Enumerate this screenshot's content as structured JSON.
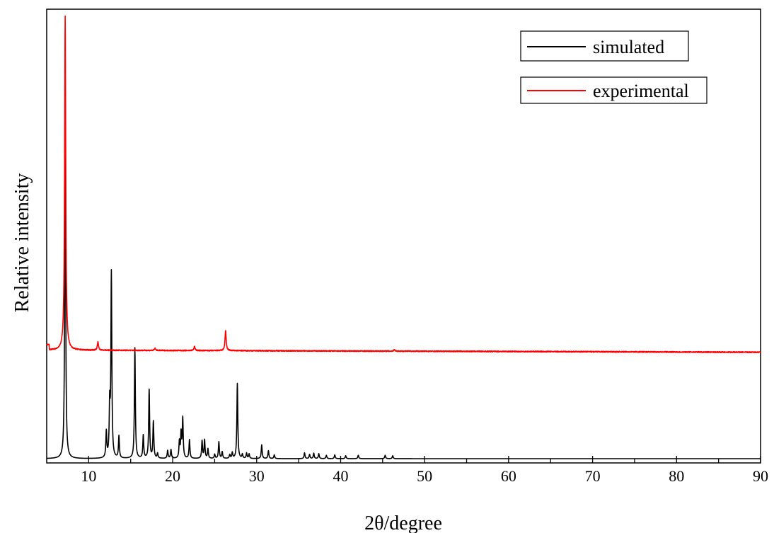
{
  "chart_data": {
    "type": "line",
    "xlabel": "2θ/degree",
    "ylabel": "Relative intensity",
    "xlim": [
      5,
      90
    ],
    "ylim": [
      0,
      100
    ],
    "x_ticks": [
      "10",
      "20",
      "30",
      "40",
      "50",
      "60",
      "70",
      "80",
      "90"
    ],
    "grid": false,
    "legend_placement": "top-right",
    "series": [
      {
        "name": "simulated",
        "color": "#000000",
        "baseline": 0,
        "peaks": [
          [
            7.2,
            83
          ],
          [
            12.1,
            6.2
          ],
          [
            12.5,
            12
          ],
          [
            12.7,
            44
          ],
          [
            13.6,
            5.3
          ],
          [
            15.5,
            26.5
          ],
          [
            16.5,
            5.5
          ],
          [
            17.2,
            16.4
          ],
          [
            17.7,
            8.8
          ],
          [
            18.2,
            1.2
          ],
          [
            19.4,
            1.9
          ],
          [
            19.8,
            2.1
          ],
          [
            20.8,
            3.9
          ],
          [
            21.0,
            5.8
          ],
          [
            21.2,
            9.5
          ],
          [
            22.0,
            4.5
          ],
          [
            23.5,
            4.2
          ],
          [
            23.8,
            4.4
          ],
          [
            24.2,
            2.3
          ],
          [
            25.0,
            1.0
          ],
          [
            25.5,
            4.0
          ],
          [
            25.9,
            1.6
          ],
          [
            26.8,
            0.9
          ],
          [
            27.1,
            1.4
          ],
          [
            27.7,
            18
          ],
          [
            28.3,
            1.0
          ],
          [
            28.8,
            1.3
          ],
          [
            29.1,
            1.1
          ],
          [
            30.6,
            3.3
          ],
          [
            31.4,
            1.9
          ],
          [
            32.1,
            0.9
          ],
          [
            35.7,
            1.4
          ],
          [
            36.3,
            1.0
          ],
          [
            36.8,
            1.3
          ],
          [
            37.4,
            1.2
          ],
          [
            38.3,
            0.8
          ],
          [
            39.3,
            0.9
          ],
          [
            40.6,
            0.7
          ],
          [
            42.1,
            0.8
          ],
          [
            45.3,
            0.8
          ],
          [
            46.2,
            0.7
          ]
        ]
      },
      {
        "name": "experimental",
        "color": "#ff0000",
        "baseline": 26,
        "peaks": [
          [
            7.2,
            80
          ],
          [
            11.1,
            2.0
          ],
          [
            17.9,
            0.5
          ],
          [
            22.6,
            1.0
          ],
          [
            26.3,
            4.8
          ],
          [
            46.4,
            0.4
          ]
        ]
      }
    ]
  }
}
